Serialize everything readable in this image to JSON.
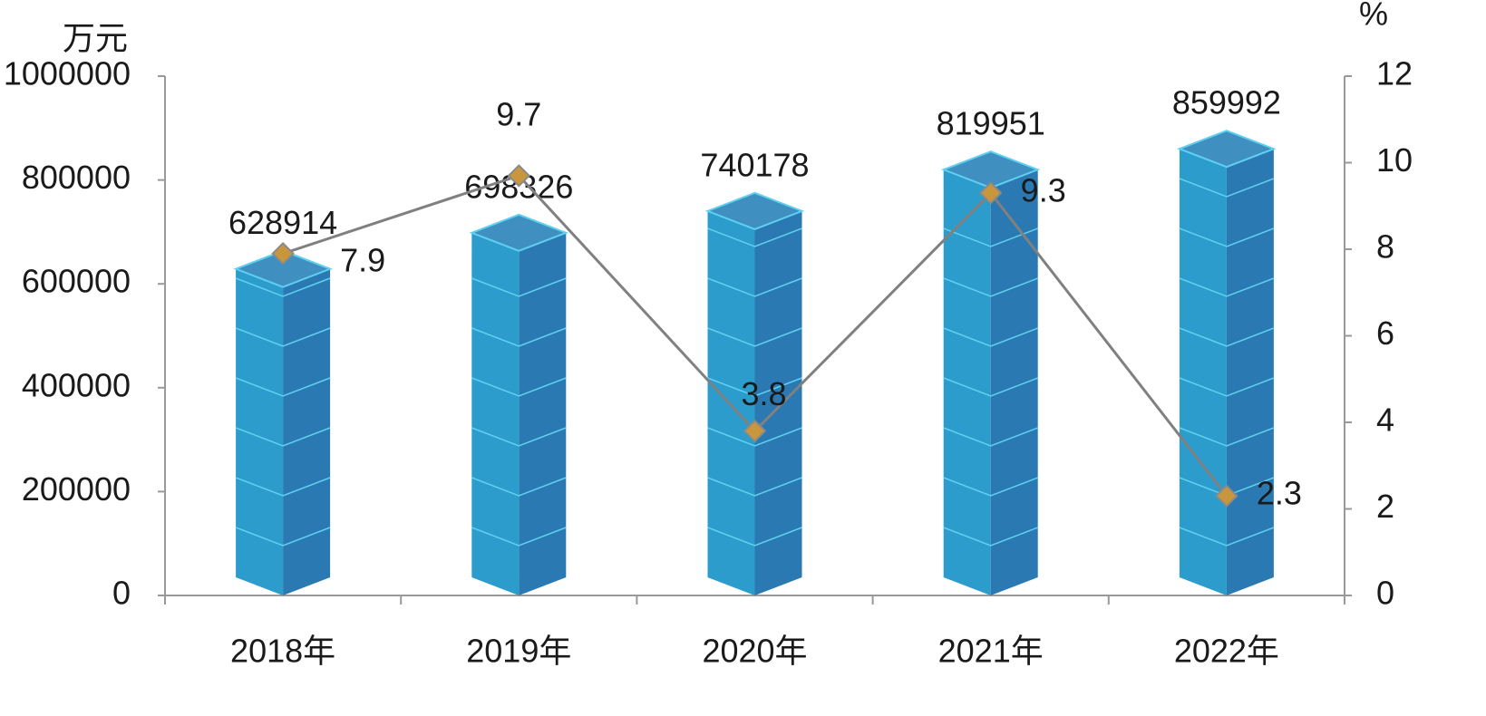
{
  "chart_data": {
    "type": "bar",
    "y_unit": "万元",
    "y2_unit": "%",
    "categories": [
      "2018年",
      "2019年",
      "2020年",
      "2021年",
      "2022年"
    ],
    "series": [
      {
        "type": "bar",
        "color": "#2b9ccc",
        "side_color": "#2a79b2",
        "values": [
          628914,
          698326,
          740178,
          819951,
          859992
        ]
      },
      {
        "type": "line",
        "axis": "y2",
        "color": "#808080",
        "marker_color": "#c8963c",
        "values": [
          7.9,
          9.7,
          3.8,
          9.3,
          2.3
        ]
      }
    ],
    "ylim": [
      0,
      1000000
    ],
    "yticks": [
      0,
      200000,
      400000,
      600000,
      800000,
      1000000
    ],
    "y2lim": [
      0,
      12
    ],
    "y2ticks": [
      0,
      2,
      4,
      6,
      8,
      10,
      12
    ]
  }
}
